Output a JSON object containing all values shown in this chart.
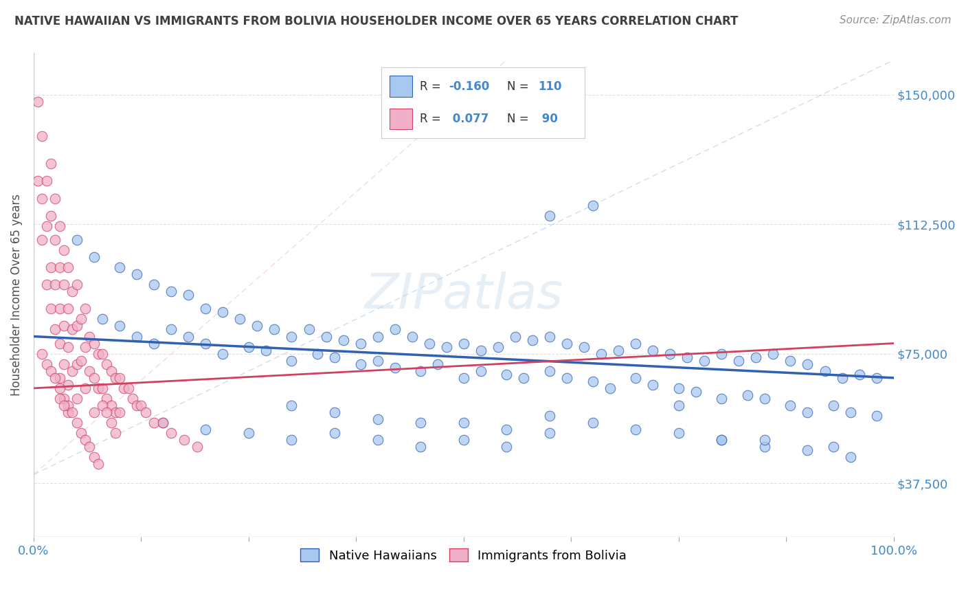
{
  "title": "NATIVE HAWAIIAN VS IMMIGRANTS FROM BOLIVIA HOUSEHOLDER INCOME OVER 65 YEARS CORRELATION CHART",
  "source": "Source: ZipAtlas.com",
  "ylabel": "Householder Income Over 65 years",
  "legend_label1": "Native Hawaiians",
  "legend_label2": "Immigrants from Bolivia",
  "color_blue": "#a8c8f0",
  "color_pink": "#f0b0c8",
  "line_blue": "#3060b0",
  "line_pink": "#d04060",
  "line_dashed_blue": "#b0c8e0",
  "line_dashed_pink": "#f0c0d0",
  "title_color": "#404040",
  "source_color": "#909090",
  "axis_color": "#4488cc",
  "background_color": "#ffffff",
  "grid_color": "#d8d8d8",
  "xlim": [
    0.0,
    1.0
  ],
  "ylim": [
    22000,
    162000
  ],
  "ytick_values": [
    37500,
    75000,
    112500,
    150000
  ],
  "yticklabels": [
    "$37,500",
    "$75,000",
    "$112,500",
    "$150,000"
  ],
  "xtick_positions": [
    0.0,
    0.125,
    0.25,
    0.375,
    0.5,
    0.625,
    0.75,
    0.875,
    1.0
  ],
  "blue_scatter_x": [
    0.05,
    0.07,
    0.1,
    0.12,
    0.14,
    0.16,
    0.18,
    0.2,
    0.22,
    0.24,
    0.26,
    0.28,
    0.3,
    0.32,
    0.34,
    0.36,
    0.38,
    0.4,
    0.42,
    0.44,
    0.46,
    0.48,
    0.5,
    0.52,
    0.54,
    0.56,
    0.58,
    0.6,
    0.62,
    0.64,
    0.66,
    0.68,
    0.7,
    0.72,
    0.74,
    0.76,
    0.78,
    0.8,
    0.82,
    0.84,
    0.86,
    0.88,
    0.9,
    0.92,
    0.94,
    0.96,
    0.98,
    0.08,
    0.1,
    0.12,
    0.14,
    0.16,
    0.18,
    0.2,
    0.22,
    0.25,
    0.27,
    0.3,
    0.33,
    0.35,
    0.38,
    0.4,
    0.42,
    0.45,
    0.47,
    0.5,
    0.52,
    0.55,
    0.57,
    0.6,
    0.62,
    0.65,
    0.67,
    0.7,
    0.72,
    0.75,
    0.77,
    0.8,
    0.83,
    0.85,
    0.88,
    0.9,
    0.93,
    0.95,
    0.98,
    0.15,
    0.2,
    0.25,
    0.3,
    0.35,
    0.4,
    0.45,
    0.5,
    0.55,
    0.6,
    0.65,
    0.7,
    0.75,
    0.8,
    0.85,
    0.9,
    0.95,
    0.6,
    0.65,
    0.75,
    0.8,
    0.85,
    0.93,
    0.3,
    0.35,
    0.4,
    0.45,
    0.5,
    0.55,
    0.6
  ],
  "blue_scatter_y": [
    108000,
    103000,
    100000,
    98000,
    95000,
    93000,
    92000,
    88000,
    87000,
    85000,
    83000,
    82000,
    80000,
    82000,
    80000,
    79000,
    78000,
    80000,
    82000,
    80000,
    78000,
    77000,
    78000,
    76000,
    77000,
    80000,
    79000,
    80000,
    78000,
    77000,
    75000,
    76000,
    78000,
    76000,
    75000,
    74000,
    73000,
    75000,
    73000,
    74000,
    75000,
    73000,
    72000,
    70000,
    68000,
    69000,
    68000,
    85000,
    83000,
    80000,
    78000,
    82000,
    80000,
    78000,
    75000,
    77000,
    76000,
    73000,
    75000,
    74000,
    72000,
    73000,
    71000,
    70000,
    72000,
    68000,
    70000,
    69000,
    68000,
    70000,
    68000,
    67000,
    65000,
    68000,
    66000,
    65000,
    64000,
    62000,
    63000,
    62000,
    60000,
    58000,
    60000,
    58000,
    57000,
    55000,
    53000,
    52000,
    50000,
    52000,
    50000,
    48000,
    50000,
    48000,
    57000,
    55000,
    53000,
    52000,
    50000,
    48000,
    47000,
    45000,
    115000,
    118000,
    60000,
    50000,
    50000,
    48000,
    60000,
    58000,
    56000,
    55000,
    55000,
    53000,
    52000
  ],
  "pink_scatter_x": [
    0.005,
    0.005,
    0.01,
    0.01,
    0.01,
    0.015,
    0.015,
    0.015,
    0.02,
    0.02,
    0.02,
    0.02,
    0.025,
    0.025,
    0.025,
    0.025,
    0.03,
    0.03,
    0.03,
    0.03,
    0.03,
    0.035,
    0.035,
    0.035,
    0.035,
    0.04,
    0.04,
    0.04,
    0.04,
    0.04,
    0.045,
    0.045,
    0.045,
    0.05,
    0.05,
    0.05,
    0.05,
    0.055,
    0.055,
    0.06,
    0.06,
    0.06,
    0.065,
    0.065,
    0.07,
    0.07,
    0.07,
    0.075,
    0.075,
    0.08,
    0.08,
    0.085,
    0.085,
    0.09,
    0.09,
    0.095,
    0.095,
    0.1,
    0.1,
    0.105,
    0.11,
    0.115,
    0.12,
    0.125,
    0.13,
    0.14,
    0.15,
    0.16,
    0.175,
    0.19,
    0.01,
    0.015,
    0.02,
    0.025,
    0.03,
    0.035,
    0.04,
    0.045,
    0.05,
    0.055,
    0.06,
    0.065,
    0.07,
    0.075,
    0.08,
    0.085,
    0.09,
    0.095,
    0.03,
    0.035
  ],
  "pink_scatter_y": [
    148000,
    125000,
    138000,
    120000,
    108000,
    125000,
    112000,
    95000,
    130000,
    115000,
    100000,
    88000,
    120000,
    108000,
    95000,
    82000,
    112000,
    100000,
    88000,
    78000,
    68000,
    105000,
    95000,
    83000,
    72000,
    100000,
    88000,
    77000,
    66000,
    58000,
    93000,
    82000,
    70000,
    95000,
    83000,
    72000,
    62000,
    85000,
    73000,
    88000,
    77000,
    65000,
    80000,
    70000,
    78000,
    68000,
    58000,
    75000,
    65000,
    75000,
    65000,
    72000,
    62000,
    70000,
    60000,
    68000,
    58000,
    68000,
    58000,
    65000,
    65000,
    62000,
    60000,
    60000,
    58000,
    55000,
    55000,
    52000,
    50000,
    48000,
    75000,
    72000,
    70000,
    68000,
    65000,
    62000,
    60000,
    58000,
    55000,
    52000,
    50000,
    48000,
    45000,
    43000,
    60000,
    58000,
    55000,
    52000,
    62000,
    60000
  ]
}
